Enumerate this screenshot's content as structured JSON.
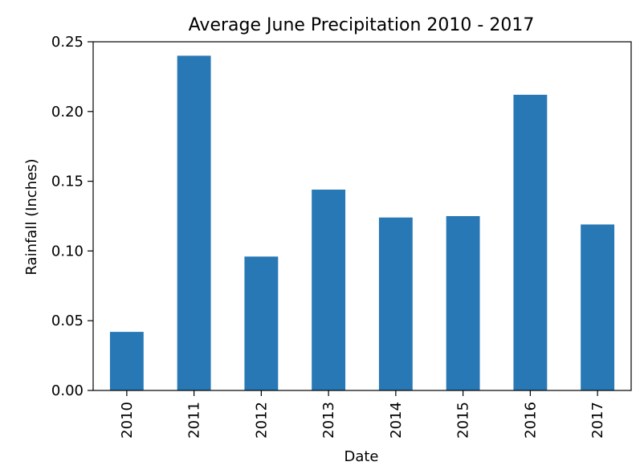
{
  "chart_data": {
    "type": "bar",
    "title": "Average June Precipitation 2010 - 2017",
    "xlabel": "Date",
    "ylabel": "Rainfall (Inches)",
    "categories": [
      "2010",
      "2011",
      "2012",
      "2013",
      "2014",
      "2015",
      "2016",
      "2017"
    ],
    "values": [
      0.042,
      0.24,
      0.096,
      0.144,
      0.124,
      0.125,
      0.212,
      0.119
    ],
    "ylim": [
      0,
      0.25
    ],
    "yticks": [
      "0.00",
      "0.05",
      "0.10",
      "0.15",
      "0.20",
      "0.25"
    ],
    "bar_color": "#2878b5",
    "grid": false,
    "legend": "none"
  }
}
